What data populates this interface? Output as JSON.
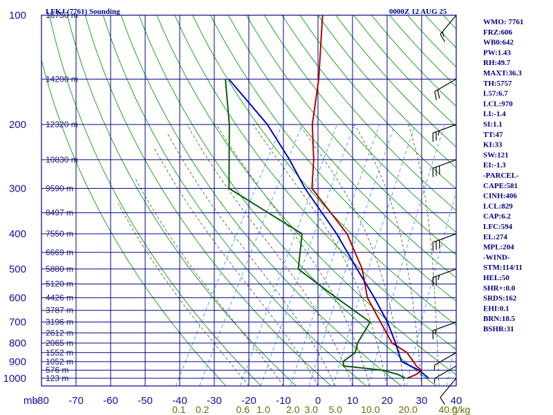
{
  "header": {
    "station_title": "LFKJ (7761) Sounding",
    "datetime": "0000Z 12 AUG 25"
  },
  "indices": [
    "WMO: 7761",
    "FRZ:606",
    "WB0:642",
    "PW:1.43",
    "RH:49.7",
    "MAXT:36.3",
    "TH:5757",
    "L57:6.7",
    "LCL:970",
    "LI:-1.4",
    "SI:1.1",
    "TT:47",
    "KI:33",
    "SW:121",
    "EI:-1.3",
    "-PARCEL-",
    "CAPE:581",
    "CINH:406",
    "LCL:829",
    "CAP:6.2",
    "LFC:594",
    "EL:274",
    "MPL:204",
    "-WIND-",
    "STM:114/11",
    "HEL:50",
    "SHR+:0.0",
    "SRDS:162",
    "EHI:0.1",
    "BRN:18.5",
    "BSHR:31"
  ],
  "colors": {
    "grid": "#00008b",
    "dry_adiabat": "#00a000",
    "moist_adiabat": "#556b2f",
    "mixing_ratio": "#4a90e2",
    "temperature": "#b00000",
    "dewpoint": "#0a5a0a",
    "parcel": "#0000c0",
    "mixing_label": "#6b6b00",
    "axis_label": "#1010a0"
  },
  "chart_data": {
    "type": "line",
    "title": "LFKJ (7761) Sounding",
    "subtitle": "0000Z 12 AUG 25",
    "xlabel": "",
    "ylabel": "mb",
    "xlim": [
      -80,
      40
    ],
    "ylim": [
      1050,
      100
    ],
    "y_scale": "log",
    "grid": true,
    "temperature_ticks": [
      -80,
      -70,
      -60,
      -50,
      -40,
      -30,
      -20,
      -10,
      0,
      10,
      20,
      30,
      40
    ],
    "pressure_ticks": [
      100,
      200,
      300,
      400,
      500,
      600,
      700,
      800,
      900,
      1000
    ],
    "height_labels": [
      {
        "p": 100,
        "label": "16750 m"
      },
      {
        "p": 150,
        "label": "14200 m"
      },
      {
        "p": 200,
        "label": "12320 m"
      },
      {
        "p": 250,
        "label": "10830 m"
      },
      {
        "p": 300,
        "label": "9590 m"
      },
      {
        "p": 350,
        "label": "8497 m"
      },
      {
        "p": 400,
        "label": "7550 m"
      },
      {
        "p": 450,
        "label": "6669 m"
      },
      {
        "p": 500,
        "label": "5880 m"
      },
      {
        "p": 550,
        "label": "5120 m"
      },
      {
        "p": 600,
        "label": "4426 m"
      },
      {
        "p": 650,
        "label": "3787 m"
      },
      {
        "p": 700,
        "label": "3196 m"
      },
      {
        "p": 750,
        "label": "2612 m"
      },
      {
        "p": 800,
        "label": "2065 m"
      },
      {
        "p": 850,
        "label": "1552 m"
      },
      {
        "p": 900,
        "label": "1052 m"
      },
      {
        "p": 950,
        "label": "576 m"
      },
      {
        "p": 1000,
        "label": "123 m"
      }
    ],
    "mixing_ratio_labels": [
      {
        "w": 0.1,
        "label": "0.1"
      },
      {
        "w": 0.2,
        "label": "0.2"
      },
      {
        "w": 0.6,
        "label": "0.6"
      },
      {
        "w": 1.0,
        "label": "1.0"
      },
      {
        "w": 2.0,
        "label": "2.0"
      },
      {
        "w": 3.0,
        "label": "3.0"
      },
      {
        "w": 5.0,
        "label": "5.0"
      },
      {
        "w": 10.0,
        "label": "10.0"
      },
      {
        "w": 20.0,
        "label": "20.0"
      },
      {
        "w": 40.0,
        "label": "40.0"
      }
    ],
    "mixing_ratio_unit": "g/kg",
    "series": [
      {
        "name": "Temperature",
        "points": [
          {
            "p": 1000,
            "t": 24.5
          },
          {
            "p": 975,
            "t": 26.5
          },
          {
            "p": 950,
            "t": 27.2
          },
          {
            "p": 925,
            "t": 25
          },
          {
            "p": 850,
            "t": 20
          },
          {
            "p": 800,
            "t": 14
          },
          {
            "p": 700,
            "t": 7
          },
          {
            "p": 600,
            "t": -1
          },
          {
            "p": 500,
            "t": -7.5
          },
          {
            "p": 400,
            "t": -18
          },
          {
            "p": 300,
            "t": -36
          },
          {
            "p": 250,
            "t": -40.5
          },
          {
            "p": 200,
            "t": -47
          },
          {
            "p": 150,
            "t": -53
          },
          {
            "p": 100,
            "t": -63
          }
        ]
      },
      {
        "name": "Dewpoint",
        "points": [
          {
            "p": 1000,
            "t": 24
          },
          {
            "p": 975,
            "t": 21
          },
          {
            "p": 950,
            "t": 16
          },
          {
            "p": 925,
            "t": 4
          },
          {
            "p": 900,
            "t": 3
          },
          {
            "p": 850,
            "t": 5
          },
          {
            "p": 800,
            "t": 4
          },
          {
            "p": 700,
            "t": 4
          },
          {
            "p": 600,
            "t": -10
          },
          {
            "p": 500,
            "t": -26
          },
          {
            "p": 400,
            "t": -31
          },
          {
            "p": 300,
            "t": -60
          },
          {
            "p": 200,
            "t": -71
          },
          {
            "p": 150,
            "t": -80
          }
        ]
      },
      {
        "name": "Parcel",
        "points": [
          {
            "p": 1000,
            "t": 30.7
          },
          {
            "p": 950,
            "t": 26.5
          },
          {
            "p": 900,
            "t": 20
          },
          {
            "p": 850,
            "t": 17.5
          },
          {
            "p": 800,
            "t": 15
          },
          {
            "p": 700,
            "t": 9
          },
          {
            "p": 600,
            "t": 1
          },
          {
            "p": 500,
            "t": -9
          },
          {
            "p": 400,
            "t": -21
          },
          {
            "p": 300,
            "t": -38
          },
          {
            "p": 250,
            "t": -47.5
          },
          {
            "p": 200,
            "t": -60
          },
          {
            "p": 150,
            "t": -79
          }
        ]
      }
    ],
    "wind_barbs": [
      {
        "p": 1000,
        "dir": 220,
        "spd": 10
      },
      {
        "p": 925,
        "dir": 240,
        "spd": 5
      },
      {
        "p": 850,
        "dir": 240,
        "spd": 5
      },
      {
        "p": 700,
        "dir": 250,
        "spd": 15
      },
      {
        "p": 500,
        "dir": 250,
        "spd": 25
      },
      {
        "p": 400,
        "dir": 250,
        "spd": 30
      },
      {
        "p": 250,
        "dir": 250,
        "spd": 30
      },
      {
        "p": 200,
        "dir": 250,
        "spd": 25
      },
      {
        "p": 150,
        "dir": 240,
        "spd": 20
      },
      {
        "p": 100,
        "dir": 220,
        "spd": 15
      }
    ]
  }
}
